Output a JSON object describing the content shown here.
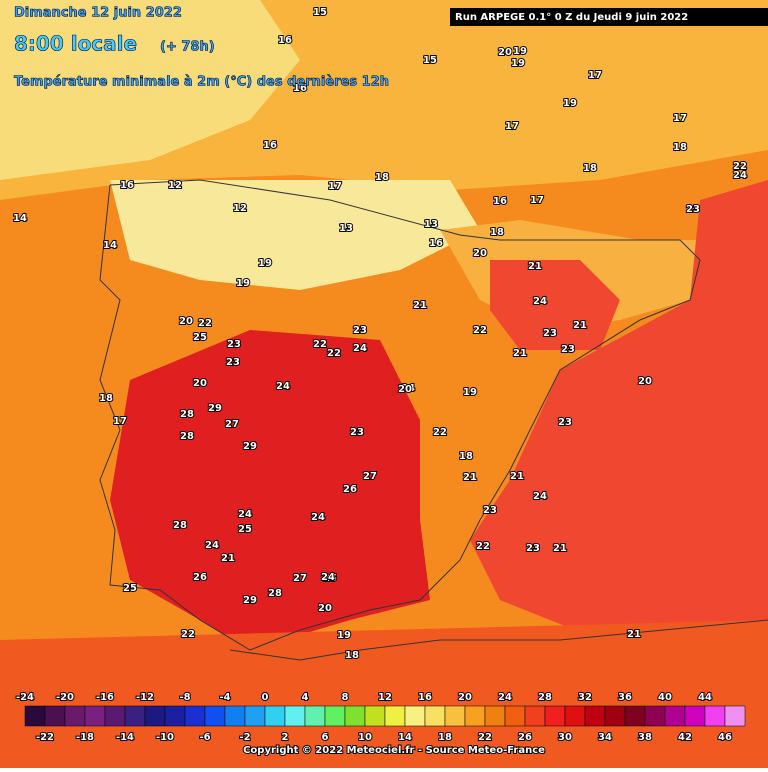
{
  "header": {
    "date": "Dimanche 12 juin 2022",
    "time": "8:00 locale",
    "offset": "(+ 78h)",
    "subtitle": "Température minimale à 2m (°C) des dernières 12h"
  },
  "run": "Run ARPEGE 0.1° 0 Z du Jeudi 9 juin 2022",
  "copyright": "Copyright © 2022 Meteociel.fr - Source Meteo-France",
  "legend": {
    "ticks": [
      -24,
      -22,
      -20,
      -18,
      -16,
      -14,
      -12,
      -10,
      -8,
      -6,
      -4,
      -2,
      0,
      2,
      4,
      6,
      8,
      10,
      12,
      14,
      16,
      18,
      20,
      22,
      24,
      26,
      28,
      30,
      32,
      34,
      36,
      38,
      40,
      42,
      44,
      46
    ],
    "colors": [
      "#2a0a3a",
      "#4a1050",
      "#6a1a6a",
      "#7a2080",
      "#5a1a70",
      "#3a2080",
      "#1a1a80",
      "#1a20a0",
      "#1a30d0",
      "#1050f0",
      "#1080f0",
      "#20a0f0",
      "#30d0f0",
      "#60f0f0",
      "#60f0b0",
      "#60f060",
      "#80e030",
      "#c0e020",
      "#f0f040",
      "#f8f080",
      "#f8e060",
      "#f8c040",
      "#f8a020",
      "#f08010",
      "#f06010",
      "#f04020",
      "#f02020",
      "#e01010",
      "#c00010",
      "#a00010",
      "#800020",
      "#900050",
      "#b00090",
      "#d000c0",
      "#f040f0",
      "#f090f0"
    ]
  },
  "map_labels": [
    15,
    19,
    16,
    16,
    15,
    16,
    16,
    17,
    18,
    20,
    19,
    17,
    19,
    17,
    17,
    18,
    18,
    22,
    23,
    24,
    16,
    17,
    18,
    14,
    12,
    12,
    13,
    13,
    14,
    16,
    20,
    21,
    24,
    23,
    21,
    19,
    19,
    20,
    22,
    23,
    22,
    24,
    25,
    23,
    22,
    20,
    21,
    22,
    24,
    21,
    23,
    18,
    17,
    23,
    28,
    29,
    27,
    29,
    28,
    24,
    23,
    27,
    26,
    24,
    25,
    26,
    28,
    24,
    29,
    28,
    27,
    24,
    25,
    20,
    22,
    19,
    18,
    21,
    23,
    21,
    24,
    22,
    23,
    21,
    21,
    20,
    23,
    25,
    22,
    24,
    19,
    18,
    21,
    20
  ]
}
